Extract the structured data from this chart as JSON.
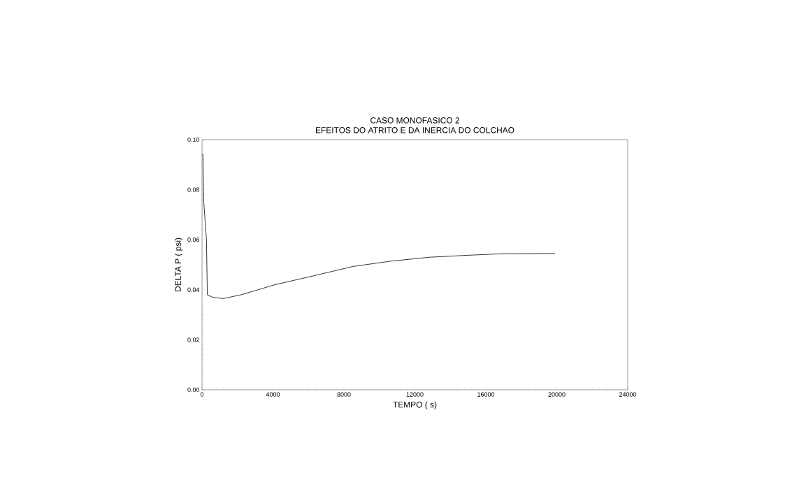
{
  "chart_data": {
    "type": "line",
    "title": "CASO MONOFASICO 2",
    "subtitle": "EFEITOS DO ATRITO E DA INERCIA DO COLCHAO",
    "xlabel": "TEMPO ( s)",
    "ylabel": "DELTA P ( psi)",
    "series": [
      {
        "color": "#000000",
        "x": [
          0,
          50,
          100,
          250,
          300,
          600,
          1200,
          2200,
          4100,
          6300,
          8500,
          10600,
          12800,
          15000,
          16900,
          19900
        ],
        "values": [
          0.094,
          0.094,
          0.075,
          0.06,
          0.038,
          0.037,
          0.0365,
          0.038,
          0.042,
          0.0456,
          0.0493,
          0.0514,
          0.053,
          0.0538,
          0.0544,
          0.0545
        ]
      }
    ],
    "xlim": [
      0,
      24000
    ],
    "ylim": [
      0,
      0.1
    ],
    "xticks": [
      0,
      4000,
      8000,
      12000,
      16000,
      20000,
      24000
    ],
    "yticks": [
      {
        "value": 0,
        "label": "0.00"
      },
      {
        "value": 0.02,
        "label": "0.02"
      },
      {
        "value": 0.04,
        "label": "0.04"
      },
      {
        "value": 0.06,
        "label": "0.06"
      },
      {
        "value": 0.08,
        "label": "0.08"
      },
      {
        "value": 0.1,
        "label": "0.10"
      }
    ],
    "line_style": "solid",
    "marker": "none"
  }
}
